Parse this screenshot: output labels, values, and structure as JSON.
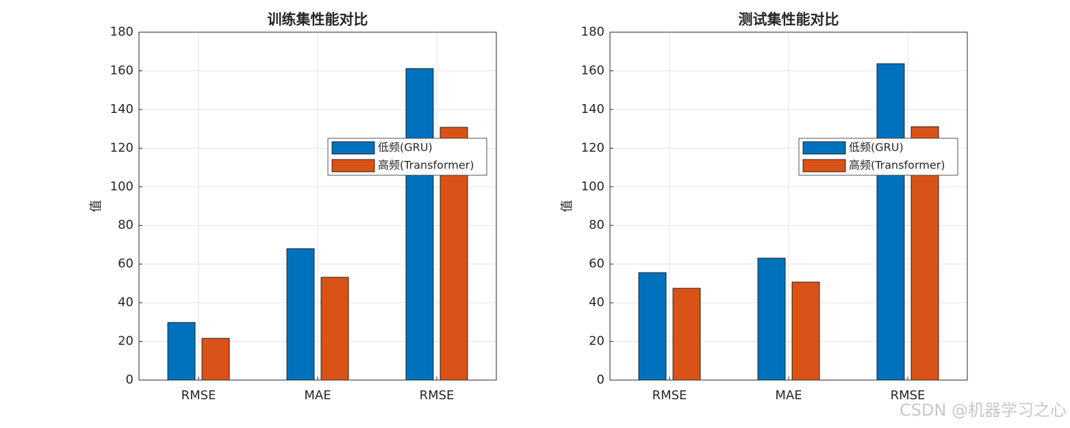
{
  "chart_data": [
    {
      "type": "bar",
      "title": "训练集性能对比",
      "ylabel": "值",
      "categories": [
        "RMSE",
        "MAE",
        "RMSE"
      ],
      "series": [
        {
          "name": "低频(GRU)",
          "color": "#0072BD",
          "values": [
            29.8,
            68,
            161.2
          ]
        },
        {
          "name": "高频(Transformer)",
          "color": "#D95319",
          "values": [
            21.6,
            53.2,
            130.8
          ]
        }
      ],
      "ylim": [
        0,
        180
      ],
      "yticks": [
        0,
        20,
        40,
        60,
        80,
        100,
        120,
        140,
        160,
        180
      ],
      "grid": true,
      "legend": "east"
    },
    {
      "type": "bar",
      "title": "测试集性能对比",
      "ylabel": "值",
      "categories": [
        "RMSE",
        "MAE",
        "RMSE"
      ],
      "series": [
        {
          "name": "低频(GRU)",
          "color": "#0072BD",
          "values": [
            55.6,
            63.1,
            163.7
          ]
        },
        {
          "name": "高频(Transformer)",
          "color": "#D95319",
          "values": [
            47.5,
            50.7,
            131.1
          ]
        }
      ],
      "ylim": [
        0,
        180
      ],
      "yticks": [
        0,
        20,
        40,
        60,
        80,
        100,
        120,
        140,
        160,
        180
      ],
      "grid": true,
      "legend": "east"
    }
  ],
  "watermark": "CSDN @机器学习之心"
}
